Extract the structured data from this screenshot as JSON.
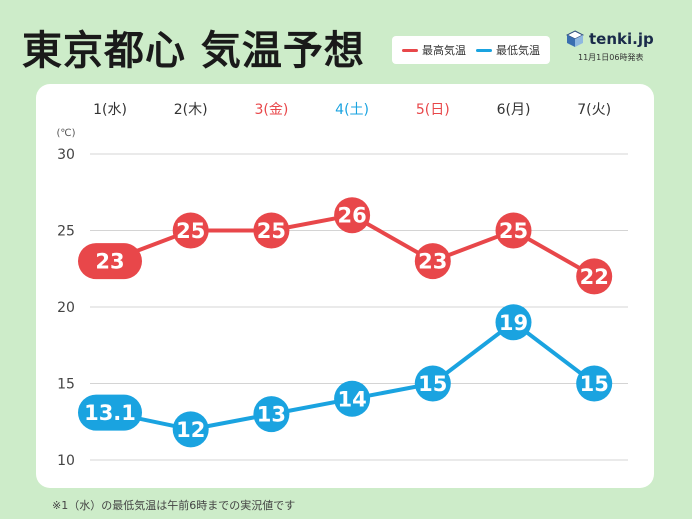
{
  "title": "東京都心 気温予想",
  "legend": {
    "max_label": "最高気温",
    "min_label": "最低気温",
    "max_color": "#e8474a",
    "min_color": "#1aa3e0"
  },
  "brand": {
    "name": "tenki.jp",
    "issued": "11月1日06時発表"
  },
  "note": "※1（水）の最低気温は午前6時までの実況値です",
  "chart_data": {
    "type": "line",
    "title": "東京都心 気温予想",
    "ylabel": "(℃)",
    "ylim": [
      10,
      30
    ],
    "yticks": [
      10,
      15,
      20,
      25,
      30
    ],
    "grid": true,
    "categories": [
      "1(水)",
      "2(木)",
      "3(金)",
      "4(土)",
      "5(日)",
      "6(月)",
      "7(火)"
    ],
    "category_colors": [
      "#333333",
      "#333333",
      "#e8474a",
      "#1aa3e0",
      "#e8474a",
      "#333333",
      "#333333"
    ],
    "series": [
      {
        "name": "最高気温",
        "color": "#e8474a",
        "values": [
          23,
          25,
          25,
          26,
          23,
          25,
          22
        ],
        "labels": [
          "23",
          "25",
          "25",
          "26",
          "23",
          "25",
          "22"
        ]
      },
      {
        "name": "最低気温",
        "color": "#1aa3e0",
        "values": [
          13.1,
          12,
          13,
          14,
          15,
          19,
          15
        ],
        "labels": [
          "13.1",
          "12",
          "13",
          "14",
          "15",
          "19",
          "15"
        ]
      }
    ]
  }
}
